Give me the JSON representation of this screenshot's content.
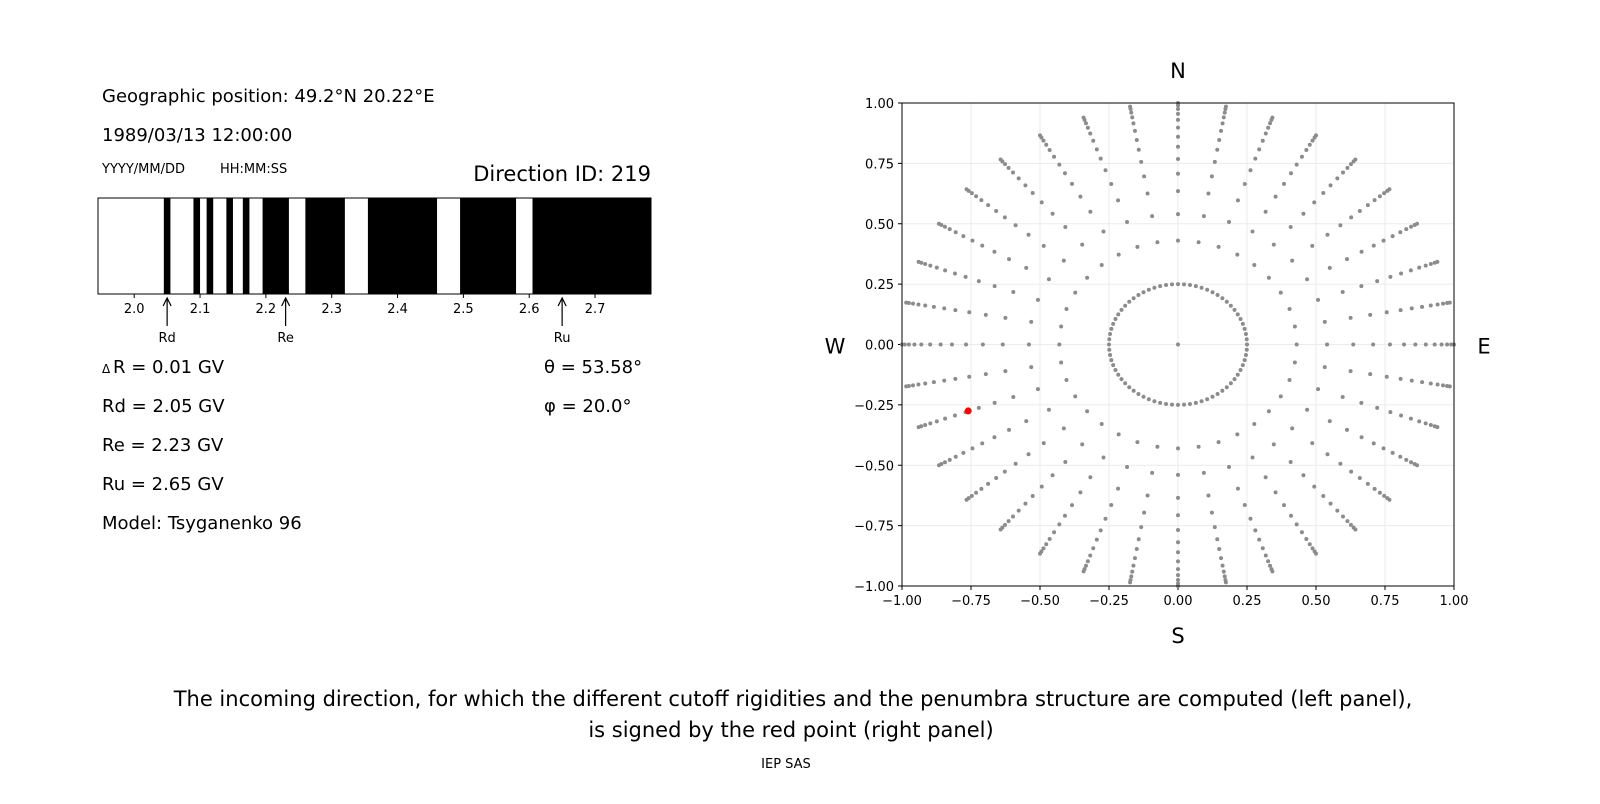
{
  "info": {
    "position": "Geographic position: 49.2°N 20.22°E",
    "datetime": "1989/03/13 12:00:00",
    "date_format": "YYYY/MM/DD",
    "time_format": "HH:MM:SS",
    "direction_id": "Direction ID: 219",
    "delta_r": "R = 0.01 GV",
    "delta_symbol": "Δ",
    "rd": "Rd = 2.05 GV",
    "re": "Re = 2.23 GV",
    "ru": "Ru = 2.65 GV",
    "model": "Model: Tsyganenko 96",
    "theta": "θ = 53.58°",
    "phi": "φ = 20.0°"
  },
  "caption": {
    "line1": "The incoming direction, for which the different cutoff rigidities and the penumbra structure are computed (left panel),",
    "line2": "is signed by the red point (right panel)",
    "credit": "IEP SAS"
  },
  "chart_data": [
    {
      "type": "bar",
      "title": "",
      "xlabel": "",
      "unit": "GV",
      "xlim": [
        1.945,
        2.785
      ],
      "xticks": [
        2.0,
        2.1,
        2.2,
        2.3,
        2.4,
        2.5,
        2.6,
        2.7
      ],
      "xtick_labels": [
        "2.0",
        "2.1",
        "2.2",
        "2.3",
        "2.4",
        "2.5",
        "2.6",
        "2.7"
      ],
      "forbidden_bands": [
        [
          2.045,
          2.055
        ],
        [
          2.09,
          2.1
        ],
        [
          2.11,
          2.12
        ],
        [
          2.14,
          2.15
        ],
        [
          2.165,
          2.175
        ],
        [
          2.195,
          2.235
        ],
        [
          2.26,
          2.32
        ],
        [
          2.355,
          2.46
        ],
        [
          2.495,
          2.58
        ],
        [
          2.605,
          2.785
        ]
      ],
      "colors": {
        "forbidden": "#000000",
        "allowed": "#ffffff"
      },
      "markers": [
        {
          "label": "Rd",
          "value": 2.05
        },
        {
          "label": "Re",
          "value": 2.23
        },
        {
          "label": "Ru",
          "value": 2.65
        }
      ]
    },
    {
      "type": "scatter",
      "title": "",
      "xlim": [
        -1,
        1
      ],
      "ylim": [
        -1,
        1
      ],
      "ticks": [
        -1,
        -0.75,
        -0.5,
        -0.25,
        0,
        0.25,
        0.5,
        0.75,
        1
      ],
      "tick_labels": [
        "−1.00",
        "−0.75",
        "−0.50",
        "−0.25",
        "0.00",
        "0.25",
        "0.50",
        "0.75",
        "1.00"
      ],
      "grid": true,
      "compass": {
        "north": "N",
        "south": "S",
        "west": "W",
        "east": "E"
      },
      "ray_azimuth_step_deg": 10,
      "ray_radii": [
        0.43,
        0.54,
        0.635,
        0.707,
        0.768,
        0.819,
        0.86,
        0.898,
        0.93,
        0.955,
        0.975,
        0.99,
        1.0
      ],
      "inner_ring_radius": 0.25,
      "inner_ring_step_deg": 5,
      "center_point": [
        0,
        0
      ],
      "selected_point": [
        -0.76,
        -0.275
      ],
      "colors": {
        "points": "#8c8c8c",
        "selected": "#ff0000",
        "grid": "#ebebeb"
      }
    }
  ]
}
